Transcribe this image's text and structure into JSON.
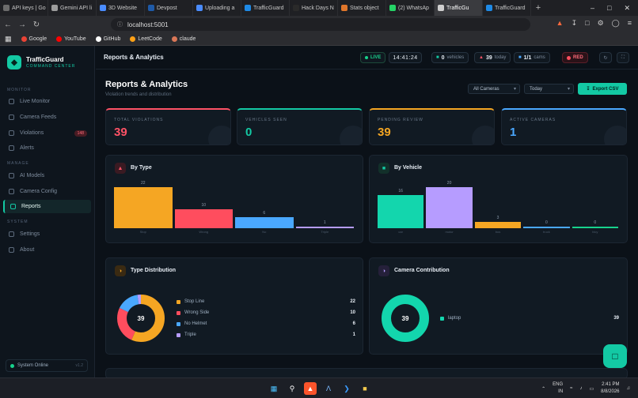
{
  "browser": {
    "tabs": [
      {
        "label": "API keys | Go",
        "color": "#6b6b6b"
      },
      {
        "label": "Gemini API li",
        "color": "#9c9c9c"
      },
      {
        "label": "3D Website",
        "color": "#4a8cff"
      },
      {
        "label": "Devpost",
        "color": "#1e5aa8"
      },
      {
        "label": "Uploading a",
        "color": "#4a8cff"
      },
      {
        "label": "TrafficGuard",
        "color": "#1e8ae6"
      },
      {
        "label": "Hack Days N",
        "color": "#2a2a2a"
      },
      {
        "label": "Stats object",
        "color": "#e0762b"
      },
      {
        "label": "(2) WhatsAp",
        "color": "#25d366"
      },
      {
        "label": "TrafficGu",
        "color": "#cfcfcf"
      },
      {
        "label": "TrafficGuard",
        "color": "#1e8ae6"
      }
    ],
    "url": "localhost:5001",
    "bookmarks": [
      {
        "label": "Google",
        "color": "#ea4335"
      },
      {
        "label": "YouTube",
        "color": "#ff0000"
      },
      {
        "label": "GitHub",
        "color": "#ffffff"
      },
      {
        "label": "LeetCode",
        "color": "#ffa116"
      },
      {
        "label": "claude",
        "color": "#d97757"
      }
    ]
  },
  "sidebar": {
    "brand_title": "TrafficGuard",
    "brand_subtitle": "COMMAND CENTER",
    "sections": {
      "monitor": "MONITOR",
      "manage": "MANAGE",
      "system": "SYSTEM"
    },
    "items": [
      {
        "label": "Live Monitor"
      },
      {
        "label": "Camera Feeds"
      },
      {
        "label": "Violations",
        "badge": "148"
      },
      {
        "label": "Alerts"
      },
      {
        "label": "AI Models"
      },
      {
        "label": "Camera Config"
      },
      {
        "label": "Reports"
      },
      {
        "label": "Settings"
      },
      {
        "label": "About"
      }
    ],
    "system_status": "System Online",
    "version": "v1.2"
  },
  "topbar": {
    "title": "Reports & Analytics",
    "live": "LIVE",
    "time": "14:41:24",
    "vehicles_count": "0",
    "vehicles_label": "vehicles",
    "today_count": "39",
    "today_label": "today",
    "cams_count": "1/1",
    "cams_label": "cams",
    "alert_level": "RED"
  },
  "page": {
    "title": "Reports & Analytics",
    "subtitle": "Violation trends and distribution",
    "camera_filter": "All Cameras",
    "range_filter": "Today",
    "export_label": "Export CSV"
  },
  "stats": [
    {
      "label": "TOTAL VIOLATIONS",
      "value": "39",
      "color": "#ff5266"
    },
    {
      "label": "VEHICLES SEEN",
      "value": "0",
      "color": "#13c9a4"
    },
    {
      "label": "PENDING REVIEW",
      "value": "39",
      "color": "#f5a623"
    },
    {
      "label": "ACTIVE CAMERAS",
      "value": "1",
      "color": "#4aa8ff"
    }
  ],
  "cards": {
    "by_type": "By Type",
    "by_vehicle": "By Vehicle",
    "type_distribution": "Type Distribution",
    "camera_contribution": "Camera Contribution"
  },
  "chart_data": [
    {
      "type": "bar",
      "title": "By Type",
      "categories": [
        "Stop",
        "Wrong",
        "No",
        "Triple"
      ],
      "values": [
        22,
        10,
        6,
        1
      ],
      "colors": [
        "#f5a623",
        "#ff4d5e",
        "#4aa8ff",
        "#b69cff"
      ]
    },
    {
      "type": "bar",
      "title": "By Vehicle",
      "categories": [
        "car",
        "motor",
        "bus",
        "truck",
        "bicy"
      ],
      "values": [
        16,
        20,
        3,
        0,
        0
      ],
      "colors": [
        "#13d6ad",
        "#b69cff",
        "#f5a623",
        "#4aa8ff",
        "#17d28c"
      ]
    },
    {
      "type": "pie",
      "title": "Type Distribution",
      "center_label": "39",
      "labels": [
        "Stop Line",
        "Wrong Side",
        "No Helmet",
        "Triple"
      ],
      "values": [
        22,
        10,
        6,
        1
      ],
      "colors": [
        "#f5a623",
        "#ff4d5e",
        "#4aa8ff",
        "#b69cff"
      ]
    },
    {
      "type": "pie",
      "title": "Camera Contribution",
      "center_label": "39",
      "labels": [
        "laptop"
      ],
      "values": [
        39
      ],
      "colors": [
        "#13d6ad"
      ]
    }
  ],
  "taskbar": {
    "lang_top": "ENG",
    "lang_bottom": "IN",
    "time": "2:41 PM",
    "date": "8/8/2026"
  }
}
